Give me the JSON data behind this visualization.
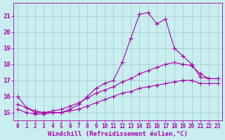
{
  "background_color": "#c8eef0",
  "grid_color": "#a0c8c8",
  "line_color": "#aa00aa",
  "marker": "+",
  "markersize": 4,
  "linewidth": 0.8,
  "markeredgewidth": 0.8,
  "xlabel": "Windchill (Refroidissement éolien,°C)",
  "xlabel_fontsize": 6.5,
  "tick_fontsize": 6,
  "xlim": [
    -0.5,
    23.5
  ],
  "ylim": [
    14.5,
    21.8
  ],
  "yticks": [
    15,
    16,
    17,
    18,
    19,
    20,
    21
  ],
  "xticks": [
    0,
    1,
    2,
    3,
    4,
    5,
    6,
    7,
    8,
    9,
    10,
    11,
    12,
    13,
    14,
    15,
    16,
    17,
    18,
    19,
    20,
    21,
    22,
    23
  ],
  "series1_x": [
    0,
    1,
    2,
    3,
    4,
    5,
    6,
    7,
    8,
    9,
    10,
    11,
    12,
    13,
    14,
    15,
    16,
    17,
    18,
    19,
    20,
    21,
    22,
    23
  ],
  "series1_y": [
    16.0,
    15.3,
    15.0,
    15.0,
    15.0,
    15.0,
    15.2,
    15.5,
    16.0,
    16.5,
    16.8,
    17.0,
    18.1,
    19.6,
    21.1,
    21.2,
    20.5,
    20.8,
    19.0,
    18.5,
    18.0,
    17.2,
    17.1,
    17.1
  ],
  "series2_x": [
    0,
    1,
    2,
    3,
    4,
    5,
    6,
    7,
    8,
    9,
    10,
    11,
    12,
    13,
    14,
    15,
    16,
    17,
    18,
    19,
    20,
    21,
    22,
    23
  ],
  "series2_y": [
    15.5,
    15.3,
    15.1,
    15.0,
    15.1,
    15.2,
    15.4,
    15.6,
    15.9,
    16.2,
    16.4,
    16.6,
    16.9,
    17.1,
    17.4,
    17.6,
    17.8,
    18.0,
    18.1,
    18.0,
    17.9,
    17.4,
    17.1,
    17.1
  ],
  "series3_x": [
    0,
    1,
    2,
    3,
    4,
    5,
    6,
    7,
    8,
    9,
    10,
    11,
    12,
    13,
    14,
    15,
    16,
    17,
    18,
    19,
    20,
    21,
    22,
    23
  ],
  "series3_y": [
    15.2,
    15.0,
    14.9,
    14.9,
    15.0,
    15.0,
    15.1,
    15.2,
    15.4,
    15.6,
    15.8,
    16.0,
    16.2,
    16.3,
    16.5,
    16.6,
    16.7,
    16.8,
    16.9,
    17.0,
    17.0,
    16.8,
    16.8,
    16.8
  ]
}
